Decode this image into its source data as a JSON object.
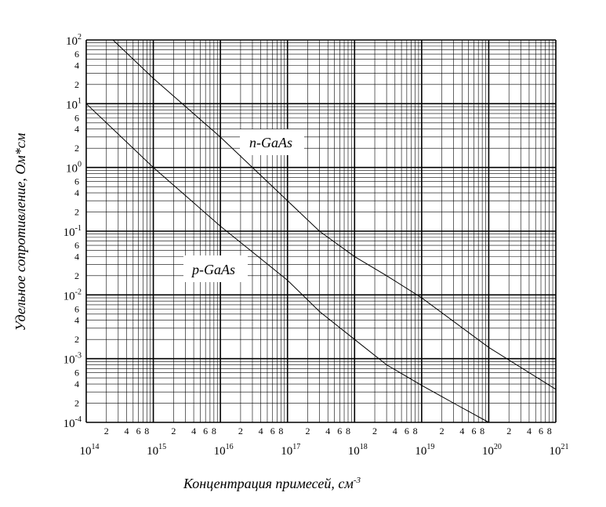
{
  "chart_data": {
    "type": "line",
    "xscale": "log",
    "yscale": "log",
    "xlim": [
      100000000000000.0,
      1e+21
    ],
    "ylim": [
      0.0001,
      100.0
    ],
    "grid": true,
    "xlabel": "Концентрация примесей, см",
    "xlabel_sup": "-3",
    "ylabel": "Удельное сопротивление, Ом*см",
    "x_major_ticks": [
      {
        "base": "10",
        "exp": "14"
      },
      {
        "base": "10",
        "exp": "15"
      },
      {
        "base": "10",
        "exp": "16"
      },
      {
        "base": "10",
        "exp": "17"
      },
      {
        "base": "10",
        "exp": "18"
      },
      {
        "base": "10",
        "exp": "19"
      },
      {
        "base": "10",
        "exp": "20"
      },
      {
        "base": "10",
        "exp": "21"
      }
    ],
    "y_major_ticks": [
      {
        "base": "10",
        "exp": "2"
      },
      {
        "base": "10",
        "exp": "1"
      },
      {
        "base": "10",
        "exp": "0"
      },
      {
        "base": "10",
        "exp": "-1"
      },
      {
        "base": "10",
        "exp": "-2"
      },
      {
        "base": "10",
        "exp": "-3"
      },
      {
        "base": "10",
        "exp": "-4"
      }
    ],
    "minor_tick_labels": [
      "2",
      "4",
      "6",
      "8"
    ],
    "series": [
      {
        "name": "n-GaAs",
        "x": [
          250000000000000.0,
          1000000000000000.0,
          1e+16,
          1e+17,
          3e+17,
          1e+18,
          3e+18,
          1e+19,
          1e+20,
          1e+21
        ],
        "y": [
          100,
          25,
          3,
          0.3,
          0.1,
          0.04,
          0.02,
          0.009,
          0.0015,
          0.00033
        ]
      },
      {
        "name": "p-GaAs",
        "x": [
          100000000000000.0,
          1000000000000000.0,
          1e+16,
          1e+17,
          3e+17,
          1e+18,
          3e+18,
          1e+19,
          3e+19,
          1e+20
        ],
        "y": [
          10,
          1,
          0.12,
          0.017,
          0.0055,
          0.002,
          0.0008,
          0.00038,
          0.0002,
          0.0001
        ]
      }
    ]
  }
}
